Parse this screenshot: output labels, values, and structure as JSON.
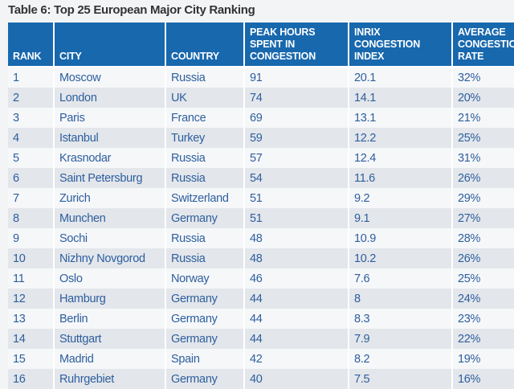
{
  "title": "Table 6: Top 25 European Major City Ranking",
  "columns": [
    "RANK",
    "CITY",
    "COUNTRY",
    "PEAK HOURS SPENT IN CONGESTION",
    "INRIX CONGESTION INDEX",
    "AVERAGE CONGESTION RATE"
  ],
  "column_lines": [
    [
      "RANK"
    ],
    [
      "CITY"
    ],
    [
      "COUNTRY"
    ],
    [
      "PEAK HOURS",
      "SPENT IN",
      "CONGESTION"
    ],
    [
      "INRIX",
      "CONGESTION",
      "INDEX"
    ],
    [
      "AVERAGE",
      "CONGESTION",
      "RATE"
    ]
  ],
  "rows": [
    [
      "1",
      "Moscow",
      "Russia",
      "91",
      "20.1",
      "32%"
    ],
    [
      "2",
      "London",
      "UK",
      "74",
      "14.1",
      "20%"
    ],
    [
      "3",
      "Paris",
      "France",
      "69",
      "13.1",
      "21%"
    ],
    [
      "4",
      "Istanbul",
      "Turkey",
      "59",
      "12.2",
      "25%"
    ],
    [
      "5",
      "Krasnodar",
      "Russia",
      "57",
      "12.4",
      "31%"
    ],
    [
      "6",
      "Saint Petersburg",
      "Russia",
      "54",
      "11.6",
      "26%"
    ],
    [
      "7",
      "Zurich",
      "Switzerland",
      "51",
      "9.2",
      "29%"
    ],
    [
      "8",
      "Munchen",
      "Germany",
      "51",
      "9.1",
      "27%"
    ],
    [
      "9",
      "Sochi",
      "Russia",
      "48",
      "10.9",
      "28%"
    ],
    [
      "10",
      "Nizhny Novgorod",
      "Russia",
      "48",
      "10.2",
      "26%"
    ],
    [
      "11",
      "Oslo",
      "Norway",
      "46",
      "7.6",
      "25%"
    ],
    [
      "12",
      "Hamburg",
      "Germany",
      "44",
      "8",
      "24%"
    ],
    [
      "13",
      "Berlin",
      "Germany",
      "44",
      "8.3",
      "23%"
    ],
    [
      "14",
      "Stuttgart",
      "Germany",
      "44",
      "7.9",
      "22%"
    ],
    [
      "15",
      "Madrid",
      "Spain",
      "42",
      "8.2",
      "19%"
    ],
    [
      "16",
      "Ruhrgebiet",
      "Germany",
      "40",
      "7.5",
      "16%"
    ]
  ]
}
